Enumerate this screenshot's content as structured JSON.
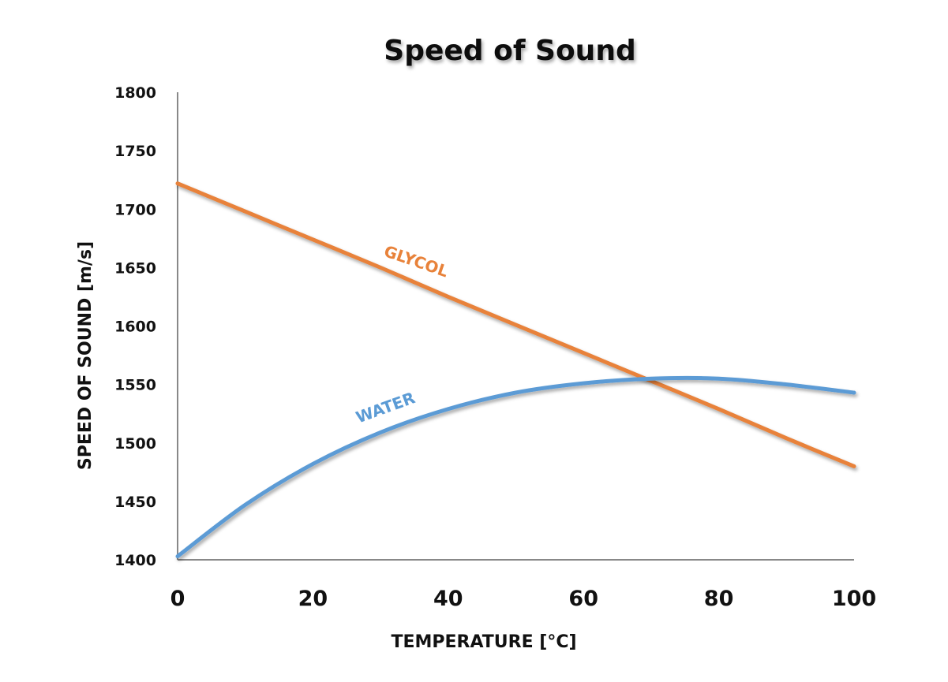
{
  "chart_data": {
    "type": "line",
    "title": "Speed of Sound",
    "xlabel": "TEMPERATURE [°C]",
    "ylabel": "SPEED OF SOUND [m/s]",
    "xlim": [
      0,
      100
    ],
    "ylim": [
      1400,
      1800
    ],
    "xticks": [
      0,
      20,
      40,
      60,
      80,
      100
    ],
    "yticks": [
      1400,
      1450,
      1500,
      1550,
      1600,
      1650,
      1700,
      1750,
      1800
    ],
    "grid": false,
    "legend": "inline labels",
    "series": [
      {
        "name": "GLYCOL",
        "label": "GLYCOL",
        "color": "#E8823A",
        "x": [
          0,
          10,
          20,
          30,
          40,
          50,
          60,
          70,
          80,
          90,
          100
        ],
        "values": [
          1722,
          1698,
          1674,
          1650,
          1625,
          1601,
          1577,
          1553,
          1529,
          1504,
          1480
        ]
      },
      {
        "name": "WATER",
        "label": "WATER",
        "color": "#5B9BD5",
        "x": [
          0,
          10,
          20,
          30,
          40,
          50,
          60,
          70,
          80,
          90,
          100
        ],
        "values": [
          1403,
          1447,
          1482,
          1509,
          1529,
          1543,
          1551,
          1555,
          1555,
          1550,
          1543
        ]
      }
    ]
  }
}
